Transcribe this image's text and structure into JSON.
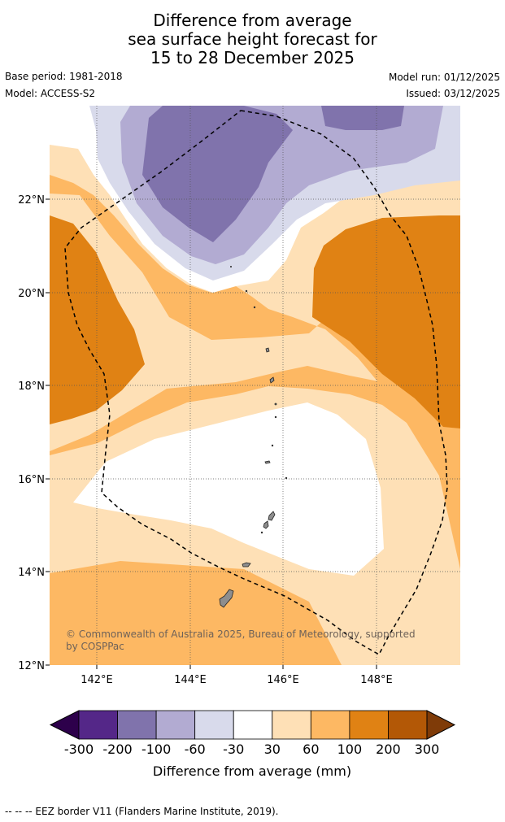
{
  "title": {
    "line1": "Difference from average",
    "line2": "sea surface height forecast for",
    "line3": "15 to 28 December 2025"
  },
  "meta": {
    "base_period": "Base period: 1981-2018",
    "model": "Model: ACCESS-S2",
    "model_run": "Model run: 01/12/2025",
    "issued": "Issued: 03/12/2025"
  },
  "map": {
    "lon_ticks": [
      "142°E",
      "144°E",
      "146°E",
      "148°E"
    ],
    "lat_ticks": [
      "22°N",
      "20°N",
      "18°N",
      "16°N",
      "14°N",
      "12°N"
    ],
    "copyright_line1": "© Commonwealth of Australia 2025, Bureau of Meteorology, supported",
    "copyright_line2": "by COSPPac"
  },
  "colorbar": {
    "ticks": [
      "-300",
      "-200",
      "-100",
      "-60",
      "-30",
      "30",
      "60",
      "100",
      "200",
      "300"
    ],
    "colors": [
      "#2d004b",
      "#542788",
      "#8073ac",
      "#b2abd2",
      "#d8daeb",
      "#ffffff",
      "#fee0b6",
      "#fdb863",
      "#e08214",
      "#b35806",
      "#7f3b08"
    ],
    "label": "Difference from average (mm)"
  },
  "footer": "--  --  -- EEZ border V11 (Flanders Marine Institute, 2019)."
}
